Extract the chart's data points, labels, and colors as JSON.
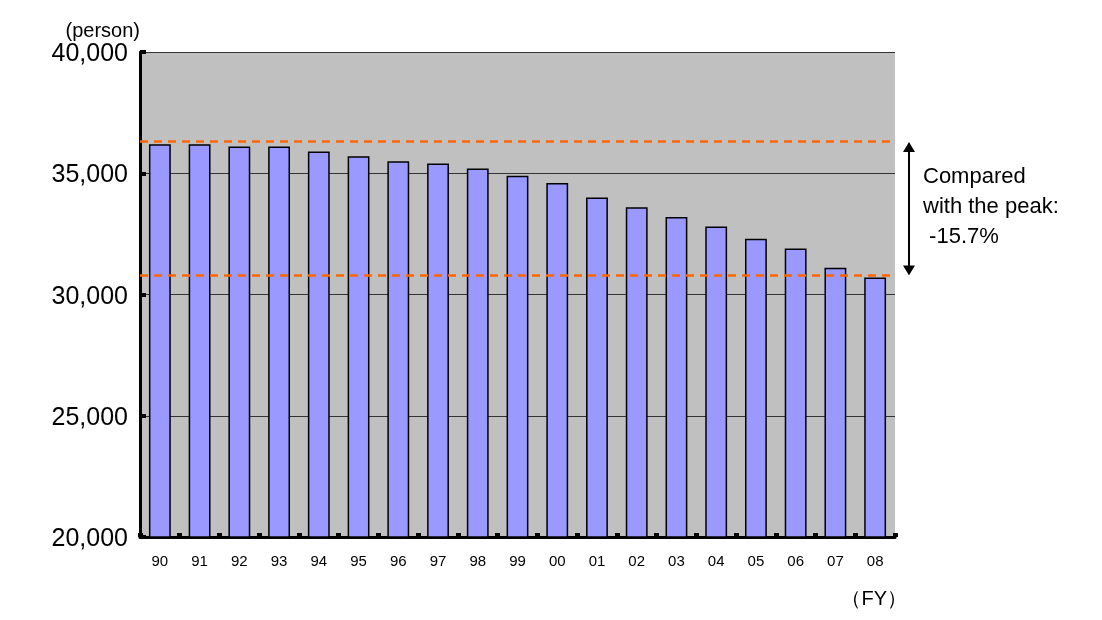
{
  "chart_data": {
    "type": "bar",
    "ylabel": "(person)",
    "xlabel": "（FY）",
    "categories": [
      "90",
      "91",
      "92",
      "93",
      "94",
      "95",
      "96",
      "97",
      "98",
      "99",
      "00",
      "01",
      "02",
      "03",
      "04",
      "05",
      "06",
      "07",
      "08"
    ],
    "values": [
      36200,
      36200,
      36100,
      36100,
      35900,
      35700,
      35500,
      35400,
      35200,
      34900,
      34600,
      34000,
      33600,
      33200,
      32800,
      32300,
      31900,
      31100,
      30700
    ],
    "color": "#9999ff",
    "ylim": [
      20000,
      40000
    ],
    "yticks": [
      {
        "value": 20000,
        "label": "20,000"
      },
      {
        "value": 25000,
        "label": "25,000"
      },
      {
        "value": 30000,
        "label": "30,000"
      },
      {
        "value": 35000,
        "label": "35,000"
      },
      {
        "value": 40000,
        "label": "40,000"
      }
    ],
    "grid": "y",
    "ref_lines": [
      {
        "axis": "y",
        "value": 36300,
        "color": "#ff6600",
        "line_style": "dashed"
      },
      {
        "axis": "y",
        "value": 30800,
        "color": "#ff6600",
        "line_style": "dashed"
      }
    ],
    "annotations": [
      "Compared\nwith the peak:\n -15.7%"
    ]
  }
}
